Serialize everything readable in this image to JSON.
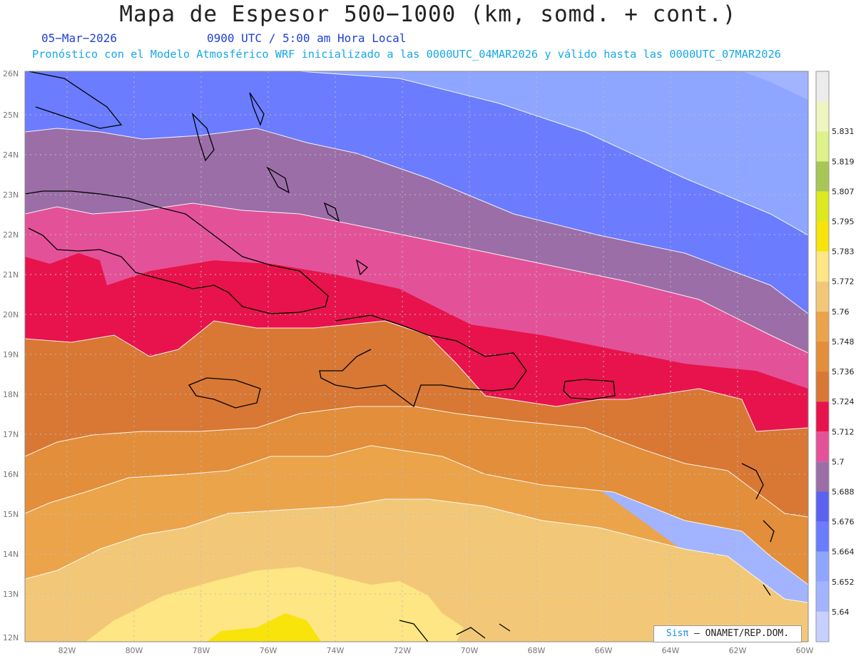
{
  "title": "Mapa de Espesor 500−1000 (km, somd. + cont.)",
  "date": "05−Mar−2026",
  "time": "0900 UTC / 5:00 am Hora Local",
  "forecast_note": "Pronóstico con el Modelo Atmosférico WRF inicializado a las 0000UTC_04MAR2026 y válido hasta las  0000UTC_07MAR2026",
  "credit": {
    "brand": "Sisπ",
    "text": " – ONAMET/REP.DOM."
  },
  "map": {
    "lon_range": [
      -83.2,
      -60
    ],
    "lat_range": [
      11.85,
      26.1
    ],
    "lon_ticks": [
      "82W",
      "80W",
      "78W",
      "76W",
      "74W",
      "72W",
      "70W",
      "68W",
      "66W",
      "64W",
      "62W",
      "60W"
    ],
    "lat_ticks": [
      "26N",
      "25N",
      "24N",
      "23N",
      "22N",
      "21N",
      "20N",
      "19N",
      "18N",
      "17N",
      "16N",
      "15N",
      "14N",
      "13N",
      "12N"
    ]
  },
  "legend": {
    "labels": [
      "5.64",
      "5.652",
      "5.664",
      "5.676",
      "5.688",
      "5.7",
      "5.712",
      "5.724",
      "5.736",
      "5.748",
      "5.76",
      "5.772",
      "5.783",
      "5.795",
      "5.807",
      "5.819",
      "5.831"
    ],
    "colors": [
      "#c8d0ff",
      "#a2b4ff",
      "#8ea6ff",
      "#6b7cff",
      "#5a62ee",
      "#9b6ea8",
      "#e35298",
      "#e8134c",
      "#d87834",
      "#e38e3a",
      "#eba44a",
      "#f2c878",
      "#fde683",
      "#f8e30b",
      "#dde81e",
      "#a8c655",
      "#dff28a",
      "#eef5bf",
      "#ececec"
    ]
  }
}
